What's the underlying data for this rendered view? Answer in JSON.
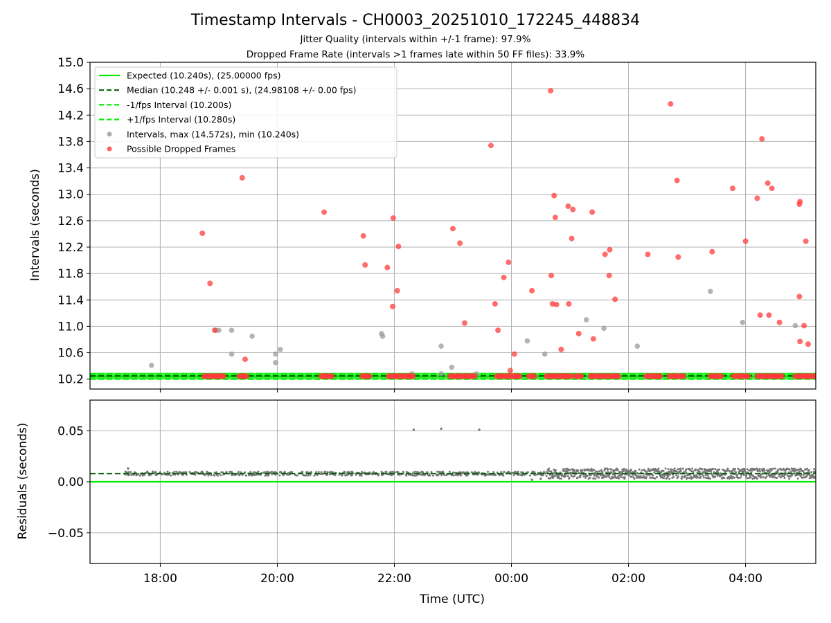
{
  "chart_data": [
    {
      "type": "scatter",
      "title": "Timestamp Intervals - CH0003_20251010_172245_448834",
      "subtitles": [
        "Jitter Quality (intervals within +/-1 frame): 97.9%",
        "Dropped Frame Rate (intervals >1 frames late within 50 FF files): 33.9%"
      ],
      "xlabel": "",
      "ylabel": "Intervals (seconds)",
      "xlim_hours": [
        16.8,
        29.2
      ],
      "ylim": [
        10.05,
        15.0
      ],
      "yticks": [
        10.2,
        10.6,
        11.0,
        11.4,
        11.8,
        12.2,
        12.6,
        13.0,
        13.4,
        13.8,
        14.2,
        14.6,
        15.0
      ],
      "ytick_labels": [
        "10.2",
        "10.6",
        "11.0",
        "11.4",
        "11.8",
        "12.2",
        "12.6",
        "13.0",
        "13.4",
        "13.8",
        "14.2",
        "14.6",
        "15.0"
      ],
      "xticks_hours": [
        18,
        20,
        22,
        24,
        26,
        28
      ],
      "xtick_labels": [
        "18:00",
        "20:00",
        "22:00",
        "00:00",
        "02:00",
        "04:00"
      ],
      "grid": true,
      "legend_position": "upper-left",
      "legend": [
        "Expected (10.240s), (25.00000 fps)",
        "Median (10.248 +/- 0.001 s), (24.98108 +/- 0.00 fps)",
        "-1/fps Interval (10.200s)",
        "+1/fps Interval (10.280s)",
        "Intervals, max (14.572s), min (10.240s)",
        "Possible Dropped Frames"
      ],
      "lines": [
        {
          "name": "Expected",
          "y": 10.24,
          "color": "#00ee00",
          "style": "solid"
        },
        {
          "name": "Median",
          "y": 10.248,
          "color": "#006400",
          "style": "dashed"
        },
        {
          "name": "-1/fps Interval",
          "y": 10.2,
          "color": "#00ee00",
          "style": "dashed"
        },
        {
          "name": "+1/fps Interval",
          "y": 10.28,
          "color": "#00ee00",
          "style": "dashed"
        }
      ],
      "baseline_value": 10.245,
      "intervals_gray": [
        [
          17.85,
          10.41
        ],
        [
          18.95,
          10.94
        ],
        [
          19.0,
          10.94
        ],
        [
          19.22,
          10.94
        ],
        [
          19.22,
          10.58
        ],
        [
          19.57,
          10.85
        ],
        [
          19.97,
          10.58
        ],
        [
          19.97,
          10.45
        ],
        [
          20.05,
          10.65
        ],
        [
          21.78,
          10.89
        ],
        [
          21.8,
          10.85
        ],
        [
          22.3,
          10.28
        ],
        [
          22.8,
          10.7
        ],
        [
          22.8,
          10.28
        ],
        [
          22.98,
          10.38
        ],
        [
          23.4,
          10.28
        ],
        [
          24.27,
          10.78
        ],
        [
          24.57,
          10.58
        ],
        [
          25.28,
          11.1
        ],
        [
          25.58,
          10.97
        ],
        [
          26.15,
          10.7
        ],
        [
          27.4,
          11.53
        ],
        [
          27.95,
          11.06
        ],
        [
          28.85,
          11.01
        ]
      ],
      "dropped_frames": [
        [
          18.72,
          12.41
        ],
        [
          18.85,
          11.65
        ],
        [
          18.93,
          10.94
        ],
        [
          19.4,
          13.25
        ],
        [
          19.45,
          10.5
        ],
        [
          20.8,
          12.73
        ],
        [
          21.47,
          12.37
        ],
        [
          21.5,
          11.93
        ],
        [
          21.88,
          11.89
        ],
        [
          21.98,
          12.64
        ],
        [
          21.97,
          11.3
        ],
        [
          22.05,
          11.54
        ],
        [
          22.07,
          12.21
        ],
        [
          23.0,
          12.48
        ],
        [
          23.12,
          12.26
        ],
        [
          23.2,
          11.05
        ],
        [
          23.65,
          13.74
        ],
        [
          23.72,
          11.34
        ],
        [
          23.77,
          10.94
        ],
        [
          23.87,
          11.74
        ],
        [
          23.95,
          11.97
        ],
        [
          23.98,
          10.33
        ],
        [
          24.05,
          10.58
        ],
        [
          24.35,
          11.54
        ],
        [
          24.67,
          14.57
        ],
        [
          24.68,
          11.77
        ],
        [
          24.7,
          11.34
        ],
        [
          24.73,
          12.98
        ],
        [
          24.75,
          12.65
        ],
        [
          24.77,
          11.33
        ],
        [
          24.85,
          10.65
        ],
        [
          24.97,
          12.82
        ],
        [
          24.98,
          11.34
        ],
        [
          25.03,
          12.33
        ],
        [
          25.05,
          12.77
        ],
        [
          25.15,
          10.89
        ],
        [
          25.38,
          12.73
        ],
        [
          25.4,
          10.81
        ],
        [
          25.6,
          12.09
        ],
        [
          25.67,
          11.77
        ],
        [
          25.68,
          12.16
        ],
        [
          25.77,
          11.41
        ],
        [
          26.33,
          12.09
        ],
        [
          26.72,
          14.37
        ],
        [
          26.83,
          13.21
        ],
        [
          26.85,
          12.05
        ],
        [
          27.43,
          12.13
        ],
        [
          27.78,
          13.09
        ],
        [
          28.0,
          12.29
        ],
        [
          28.2,
          12.94
        ],
        [
          28.25,
          11.17
        ],
        [
          28.28,
          13.84
        ],
        [
          28.38,
          13.17
        ],
        [
          28.4,
          11.17
        ],
        [
          28.45,
          13.09
        ],
        [
          28.58,
          11.06
        ],
        [
          28.92,
          11.45
        ],
        [
          28.92,
          12.85
        ],
        [
          28.93,
          12.89
        ],
        [
          28.93,
          10.77
        ],
        [
          29.0,
          11.01
        ],
        [
          29.03,
          12.29
        ],
        [
          29.07,
          10.73
        ]
      ],
      "baseline_dropped_ranges": [
        [
          18.75,
          19.1
        ],
        [
          19.35,
          19.5
        ],
        [
          20.75,
          20.95
        ],
        [
          21.45,
          21.6
        ],
        [
          21.9,
          22.35
        ],
        [
          22.95,
          23.4
        ],
        [
          23.75,
          24.15
        ],
        [
          24.3,
          24.4
        ],
        [
          24.6,
          25.05
        ],
        [
          25.1,
          25.2
        ],
        [
          25.35,
          25.65
        ],
        [
          25.68,
          25.85
        ],
        [
          26.3,
          26.55
        ],
        [
          26.7,
          26.95
        ],
        [
          27.4,
          27.6
        ],
        [
          27.8,
          28.05
        ],
        [
          28.2,
          28.65
        ],
        [
          28.85,
          29.2
        ]
      ],
      "series_colors": {
        "intervals": "#999999",
        "dropped": "#ff3b3b",
        "baseline": "#33ee33"
      }
    },
    {
      "type": "scatter",
      "title": "",
      "xlabel": "Time (UTC)",
      "ylabel": "Residuals (seconds)",
      "xlim_hours": [
        16.8,
        29.2
      ],
      "ylim": [
        -0.08,
        0.08
      ],
      "yticks": [
        0.05,
        0.0,
        -0.05
      ],
      "ytick_labels": [
        "0.05",
        "0.00",
        "−0.05"
      ],
      "xticks_hours": [
        18,
        20,
        22,
        24,
        26,
        28
      ],
      "xtick_labels": [
        "18:00",
        "20:00",
        "22:00",
        "00:00",
        "02:00",
        "04:00"
      ],
      "grid": true,
      "lines": [
        {
          "name": "Expected",
          "y": 0.0,
          "color": "#00ee00",
          "style": "solid"
        },
        {
          "name": "Median",
          "y": 0.008,
          "color": "#006400",
          "style": "dashed"
        }
      ],
      "residual_band": {
        "x_range": [
          17.4,
          29.2
        ],
        "center": 0.008,
        "spread_early": 0.002,
        "spread_late": 0.005,
        "late_start": 24.6
      },
      "outliers": [
        [
          17.45,
          0.013
        ],
        [
          22.33,
          0.051
        ],
        [
          22.8,
          0.052
        ],
        [
          23.45,
          0.051
        ],
        [
          24.35,
          0.002
        ],
        [
          24.5,
          0.003
        ]
      ],
      "point_color": "#777777"
    }
  ]
}
